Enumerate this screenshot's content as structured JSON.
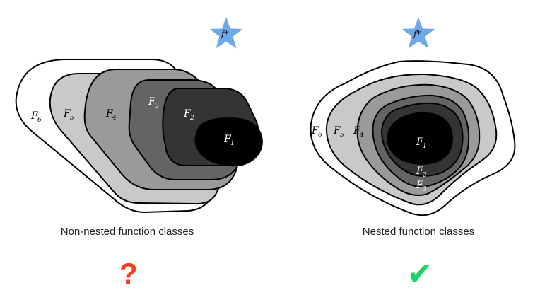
{
  "left_panel": {
    "target": "f*",
    "caption": "Non-nested function classes",
    "verdict_symbol": "?",
    "regions": [
      {
        "letter": "F",
        "index": "6",
        "fill": "#ffffff"
      },
      {
        "letter": "F",
        "index": "5",
        "fill": "#c9c9c9"
      },
      {
        "letter": "F",
        "index": "4",
        "fill": "#9a9a9a"
      },
      {
        "letter": "F",
        "index": "3",
        "fill": "#646464"
      },
      {
        "letter": "F",
        "index": "2",
        "fill": "#343434"
      },
      {
        "letter": "F",
        "index": "1",
        "fill": "#000000"
      }
    ]
  },
  "right_panel": {
    "target": "f*",
    "caption": "Nested function classes",
    "verdict_symbol": "✔",
    "regions": [
      {
        "letter": "F",
        "index": "6",
        "fill": "#ffffff"
      },
      {
        "letter": "F",
        "index": "5",
        "fill": "#c9c9c9"
      },
      {
        "letter": "F",
        "index": "4",
        "fill": "#9a9a9a"
      },
      {
        "letter": "F",
        "index": "3",
        "fill": "#646464"
      },
      {
        "letter": "F",
        "index": "2",
        "fill": "#343434"
      },
      {
        "letter": "F",
        "index": "1",
        "fill": "#000000"
      }
    ]
  },
  "colors": {
    "star": "#6ea8e8",
    "question_mark": "#f0421e",
    "check_mark": "#1ed464",
    "outline": "#000000"
  }
}
